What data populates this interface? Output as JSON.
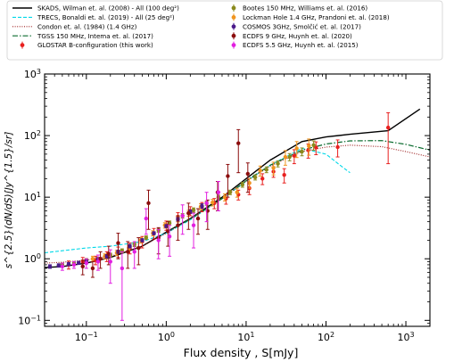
{
  "chart_data": {
    "type": "line",
    "title": "",
    "xlabel": "Flux density , S[mJy]",
    "ylabel": "s^{2.5}(dN/dS)[Jy^{1.5}/sr]",
    "xscale": "log",
    "yscale": "log",
    "xlim": [
      0.03,
      2000
    ],
    "ylim": [
      0.08,
      1000
    ],
    "xticks": [
      {
        "v": 0.1,
        "b": "10",
        "e": "−1"
      },
      {
        "v": 1,
        "b": "10",
        "e": "0"
      },
      {
        "v": 10,
        "b": "10",
        "e": "1"
      },
      {
        "v": 100,
        "b": "10",
        "e": "2"
      },
      {
        "v": 1000,
        "b": "10",
        "e": "3"
      }
    ],
    "yticks": [
      {
        "v": 0.1,
        "b": "10",
        "e": "−1"
      },
      {
        "v": 1,
        "b": "10",
        "e": "0"
      },
      {
        "v": 10,
        "b": "10",
        "e": "1"
      },
      {
        "v": 100,
        "b": "10",
        "e": "2"
      },
      {
        "v": 1000,
        "b": "10",
        "e": "3"
      }
    ],
    "grid": false,
    "legend_position": "top",
    "models": [
      {
        "name": "SKADS, Wilman et. al. (2008) - All (100 deg²)",
        "color": "#000000",
        "dash": "",
        "width": 1.4,
        "x": [
          0.03,
          0.05,
          0.1,
          0.2,
          0.5,
          1,
          2,
          5,
          10,
          20,
          50,
          100,
          200,
          600,
          1500
        ],
        "y": [
          0.72,
          0.75,
          0.85,
          1.05,
          1.6,
          2.7,
          4.5,
          10,
          20,
          40,
          80,
          95,
          105,
          120,
          270
        ]
      },
      {
        "name": "TRECS, Bonaldi et. al. (2019) - All (25 deg²)",
        "color": "#00d8e8",
        "dash": "4,2",
        "width": 1.1,
        "x": [
          0.03,
          0.05,
          0.1,
          0.2,
          0.5,
          1,
          2,
          5,
          10,
          20,
          50,
          100,
          150,
          200
        ],
        "y": [
          1.25,
          1.35,
          1.5,
          1.6,
          1.9,
          2.6,
          4.3,
          9.5,
          18,
          33,
          62,
          50,
          33,
          25
        ]
      },
      {
        "name": "Condon et. al. (1984) (1.4 GHz)",
        "color": "#9c1c1c",
        "dash": "1,1.6",
        "width": 1.1,
        "x": [
          0.03,
          0.05,
          0.1,
          0.2,
          0.5,
          1,
          2,
          5,
          10,
          20,
          50,
          100,
          200,
          500,
          1000,
          2000
        ],
        "y": [
          0.85,
          0.88,
          0.95,
          1.1,
          1.6,
          2.6,
          4.5,
          9.5,
          18,
          32,
          55,
          65,
          70,
          66,
          55,
          45
        ]
      },
      {
        "name": "TGSS 150 MHz, Intema et. al. (2017)",
        "color": "#0b6b2f",
        "dash": "6,2,1.5,2",
        "width": 1.2,
        "x": [
          1,
          2,
          5,
          10,
          20,
          50,
          100,
          200,
          500,
          1000,
          2000
        ],
        "y": [
          2.7,
          4.4,
          9.5,
          18.5,
          33,
          58,
          73,
          82,
          83,
          72,
          58
        ]
      }
    ],
    "legend_datasets": [
      {
        "name": "GLOSTAR B-configuration (this work)",
        "color": "#e8201f"
      },
      {
        "name": "Bootes 150 MHz, Williams et. al. (2016)",
        "color": "#8a8a1c"
      },
      {
        "name": "Lockman Hole 1.4 GHz, Prandoni et. al. (2018)",
        "color": "#f0951f"
      },
      {
        "name": "COSMOS 3GHz, Smolčić et. al. (2017)",
        "color": "#4b1a8a"
      },
      {
        "name": "ECDFS 9 GHz, Huynh et. al. (2020)",
        "color": "#8b0d0d"
      },
      {
        "name": "ECDFS 5.5 GHz, Huynh et. al. (2015)",
        "color": "#e21fe0"
      }
    ],
    "datasets": [
      {
        "color": "#e8201f",
        "x": [
          0.06,
          0.09,
          0.13,
          0.18,
          0.25,
          0.35,
          0.5,
          0.7,
          1.0,
          1.4,
          2.0,
          2.8,
          4.0,
          5.6,
          8,
          11,
          16,
          22,
          30,
          40,
          60,
          75,
          140,
          600
        ],
        "y": [
          0.8,
          0.9,
          0.95,
          1.1,
          1.3,
          1.5,
          1.9,
          2.6,
          3.5,
          4.8,
          6.0,
          7.0,
          8.0,
          9.5,
          11,
          14,
          20,
          26,
          23,
          47,
          58,
          64,
          65,
          135
        ],
        "yerr": [
          0.12,
          0.15,
          0.15,
          0.2,
          0.25,
          0.3,
          0.4,
          0.5,
          0.6,
          0.8,
          1.0,
          1.2,
          1.5,
          1.8,
          2,
          3,
          4,
          5,
          6,
          12,
          15,
          15,
          20,
          100
        ]
      },
      {
        "color": "#8a8a1c",
        "x": [
          0.05,
          0.07,
          0.1,
          0.14,
          0.2,
          0.28,
          0.4,
          0.56,
          0.8,
          1.1,
          1.6,
          2.2,
          3.2,
          4.5,
          6.3,
          9,
          13,
          18,
          25,
          35,
          50,
          70
        ],
        "y": [
          0.8,
          0.85,
          0.95,
          1.0,
          1.15,
          1.35,
          1.7,
          2.2,
          2.9,
          3.8,
          5.0,
          6.2,
          8.0,
          10,
          12,
          16,
          21,
          28,
          35,
          45,
          55,
          70
        ],
        "yerr": [
          0.05,
          0.05,
          0.06,
          0.06,
          0.08,
          0.1,
          0.12,
          0.15,
          0.2,
          0.3,
          0.4,
          0.5,
          0.6,
          0.8,
          1,
          1.5,
          2,
          3,
          4,
          6,
          8,
          12
        ]
      },
      {
        "color": "#f0951f",
        "x": [
          0.12,
          0.17,
          0.24,
          0.34,
          0.48,
          0.68,
          0.96,
          1.4,
          1.9,
          2.7,
          3.8,
          5.4,
          7.7,
          11,
          15,
          22,
          31,
          43,
          61
        ],
        "y": [
          1.0,
          1.1,
          1.25,
          1.5,
          2.0,
          2.6,
          3.5,
          4.4,
          5.5,
          7.0,
          8.2,
          10,
          12,
          17,
          27,
          30,
          45,
          62,
          68
        ],
        "yerr": [
          0.1,
          0.1,
          0.12,
          0.15,
          0.2,
          0.25,
          0.35,
          0.45,
          0.6,
          0.8,
          1.0,
          1.3,
          2,
          3,
          5,
          7,
          12,
          18,
          20
        ]
      },
      {
        "color": "#4b1a8a",
        "x": [
          0.035,
          0.045,
          0.06,
          0.08,
          0.1,
          0.14,
          0.18,
          0.25,
          0.35,
          0.5,
          0.7,
          1.0,
          1.4,
          2.0,
          2.8
        ],
        "y": [
          0.75,
          0.78,
          0.82,
          0.86,
          0.9,
          0.98,
          1.1,
          1.3,
          1.6,
          2.0,
          2.6,
          3.4,
          4.4,
          5.8,
          7.2
        ],
        "yerr": [
          0.05,
          0.05,
          0.05,
          0.05,
          0.06,
          0.06,
          0.07,
          0.08,
          0.1,
          0.12,
          0.15,
          0.2,
          0.3,
          0.4,
          0.6
        ]
      },
      {
        "color": "#8b0d0d",
        "x": [
          0.09,
          0.12,
          0.15,
          0.19,
          0.25,
          0.33,
          0.45,
          0.6,
          0.8,
          1.05,
          1.4,
          1.9,
          2.5,
          3.3,
          4.4,
          5.9,
          8,
          10.5
        ],
        "y": [
          0.75,
          0.7,
          1.0,
          1.2,
          1.8,
          1.3,
          1.5,
          8.0,
          2.2,
          2.8,
          3.5,
          5.5,
          4.5,
          6.0,
          12,
          22,
          75,
          24
        ],
        "yerr": [
          0.2,
          0.2,
          0.3,
          0.4,
          0.8,
          0.6,
          0.7,
          5,
          1.0,
          1.2,
          1.5,
          2.5,
          2.0,
          3,
          6,
          12,
          50,
          12
        ]
      },
      {
        "color": "#e21fe0",
        "x": [
          0.05,
          0.07,
          0.1,
          0.14,
          0.2,
          0.28,
          0.4,
          0.56,
          0.8,
          1.1,
          1.6,
          2.2,
          3.2,
          4.5
        ],
        "y": [
          0.75,
          0.8,
          0.85,
          0.9,
          0.9,
          0.7,
          1.3,
          4.5,
          2.0,
          2.3,
          5.0,
          3.5,
          8.0,
          12
        ],
        "yerr": [
          0.1,
          0.1,
          0.15,
          0.25,
          0.5,
          0.6,
          0.6,
          2,
          1.0,
          1.2,
          2.5,
          2,
          4,
          6
        ]
      }
    ]
  }
}
